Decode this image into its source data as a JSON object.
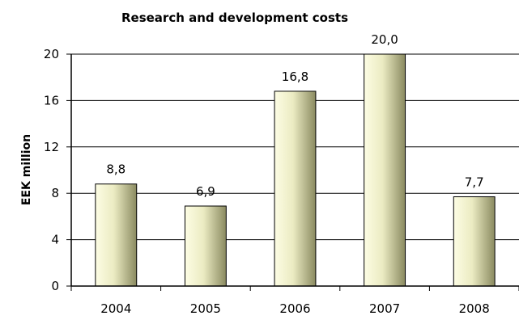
{
  "chart_data": {
    "type": "bar",
    "title": "Research and development costs",
    "xlabel": "",
    "ylabel": "EEK million",
    "categories": [
      "2004",
      "2005",
      "2006",
      "2007",
      "2008"
    ],
    "values": [
      8.8,
      6.9,
      16.8,
      20.0,
      7.7
    ],
    "data_labels": [
      "8,8",
      "6,9",
      "16,8",
      "20,0",
      "7,7"
    ],
    "ylim": [
      0,
      20
    ],
    "yticks": [
      0,
      4,
      8,
      12,
      16,
      20
    ],
    "grid": true,
    "legend": "none",
    "colors": {
      "bar_light": "#fdfde4",
      "bar_mid": "#ebebc2",
      "bar_dark": "#8a8a60",
      "bar_stroke": "#000000",
      "grid": "#000000"
    }
  }
}
